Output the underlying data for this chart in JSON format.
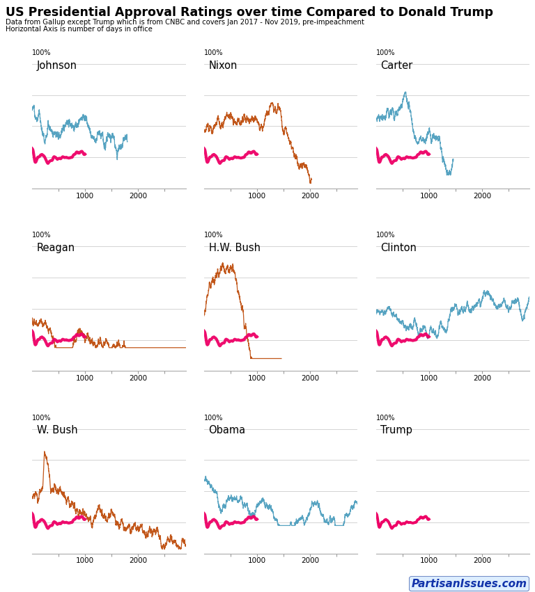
{
  "title": "US Presidential Approval Ratings over time Compared to Donald Trump",
  "subtitle1": "Data from Gallup except Trump which is from CNBC and covers Jan 2017 - Nov 2019, pre-impeachment",
  "subtitle2": "Horizontal Axis is number of days in office",
  "presidents": [
    "Johnson",
    "Nixon",
    "Carter",
    "Reagan",
    "H.W. Bush",
    "Clinton",
    "W. Bush",
    "Obama",
    "Trump"
  ],
  "dem_color": "#4499bb",
  "rep_color": "#bb4400",
  "trump_color": "#ee0066",
  "background_color": "#ffffff",
  "grid_color": "#cccccc",
  "xlim": [
    0,
    2900
  ],
  "ylim": [
    20,
    105
  ],
  "watermark": "PartisanIssues.com"
}
